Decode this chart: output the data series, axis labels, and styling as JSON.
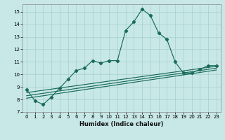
{
  "title": "",
  "xlabel": "Humidex (Indice chaleur)",
  "bg_color": "#c8e8e8",
  "grid_color": "#a8cece",
  "line_color": "#1a6b5a",
  "xlim": [
    -0.5,
    23.5
  ],
  "ylim": [
    7,
    15.6
  ],
  "xticks": [
    0,
    1,
    2,
    3,
    4,
    5,
    6,
    7,
    8,
    9,
    10,
    11,
    12,
    13,
    14,
    15,
    16,
    17,
    18,
    19,
    20,
    21,
    22,
    23
  ],
  "yticks": [
    7,
    8,
    9,
    10,
    11,
    12,
    13,
    14,
    15
  ],
  "line1_x": [
    0,
    1,
    2,
    3,
    4,
    5,
    6,
    7,
    8,
    9,
    10,
    11,
    12,
    13,
    14,
    15,
    16,
    17,
    18,
    19,
    20,
    21,
    22,
    23
  ],
  "line1_y": [
    8.8,
    7.9,
    7.6,
    8.2,
    8.9,
    9.6,
    10.3,
    10.5,
    11.1,
    10.9,
    11.1,
    11.1,
    13.5,
    14.2,
    15.2,
    14.7,
    13.3,
    12.8,
    11.0,
    10.1,
    10.1,
    10.4,
    10.7,
    10.7
  ],
  "line2_x": [
    0,
    23
  ],
  "line2_y": [
    8.3,
    10.5
  ],
  "line3_x": [
    0,
    23
  ],
  "line3_y": [
    8.55,
    10.65
  ],
  "line4_x": [
    0,
    23
  ],
  "line4_y": [
    8.1,
    10.35
  ]
}
